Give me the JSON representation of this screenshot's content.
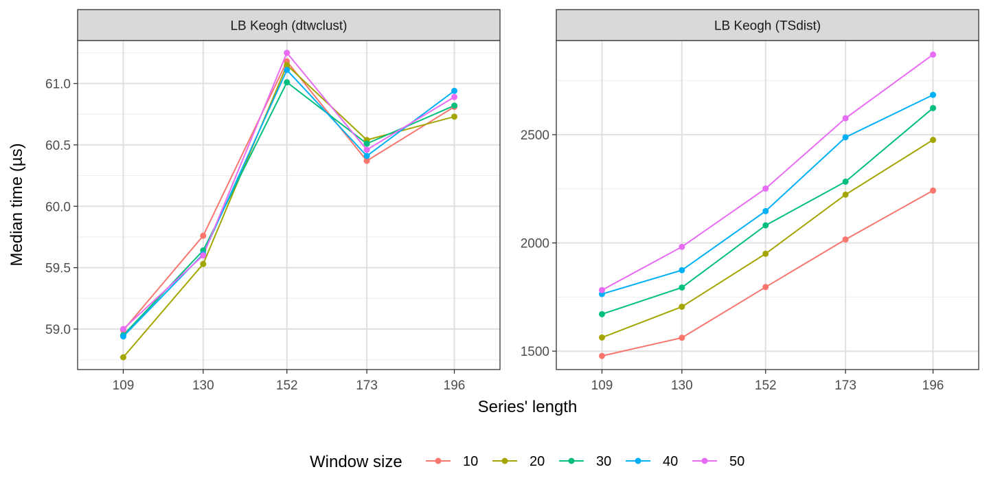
{
  "chart_data": {
    "type": "line",
    "ylabel": "Median time (µs)",
    "xlabel": "Series' length",
    "x": [
      109,
      130,
      152,
      173,
      196
    ],
    "legend": {
      "title": "Window size",
      "position": "bottom"
    },
    "series_colors": {
      "10": "#F8766D",
      "20": "#A3A500",
      "30": "#00BF7D",
      "40": "#00B0F6",
      "50": "#E76BF3"
    },
    "panel_background": "#ffffff",
    "strip_background": "#d9d9d9",
    "grid": true,
    "panels": [
      {
        "title": "LB Keogh (dtwclust)",
        "ylim": [
          58.67,
          61.35
        ],
        "yticks": [
          59.0,
          59.5,
          60.0,
          60.5,
          61.0
        ],
        "ytick_labels": [
          "59.0",
          "59.5",
          "60.0",
          "60.5",
          "61.0"
        ],
        "series": [
          {
            "name": "10",
            "values": [
              58.99,
              59.76,
              61.18,
              60.37,
              60.81
            ]
          },
          {
            "name": "20",
            "values": [
              58.77,
              59.53,
              61.15,
              60.54,
              60.73
            ]
          },
          {
            "name": "30",
            "values": [
              58.95,
              59.64,
              61.01,
              60.51,
              60.82
            ]
          },
          {
            "name": "40",
            "values": [
              58.94,
              59.61,
              61.11,
              60.41,
              60.94
            ]
          },
          {
            "name": "50",
            "values": [
              59.0,
              59.6,
              61.25,
              60.46,
              60.89
            ]
          }
        ]
      },
      {
        "title": "LB Keogh (TSdist)",
        "ylim": [
          1415,
          2935
        ],
        "yticks": [
          1500,
          2000,
          2500
        ],
        "ytick_labels": [
          "1500",
          "2000",
          "2500"
        ],
        "series": [
          {
            "name": "10",
            "values": [
              1478,
              1562,
              1796,
              2016,
              2242
            ]
          },
          {
            "name": "20",
            "values": [
              1563,
              1705,
              1950,
              2223,
              2476
            ]
          },
          {
            "name": "30",
            "values": [
              1671,
              1794,
              2081,
              2283,
              2623
            ]
          },
          {
            "name": "40",
            "values": [
              1764,
              1874,
              2147,
              2488,
              2684
            ]
          },
          {
            "name": "50",
            "values": [
              1782,
              1982,
              2251,
              2576,
              2870
            ]
          }
        ]
      }
    ]
  }
}
